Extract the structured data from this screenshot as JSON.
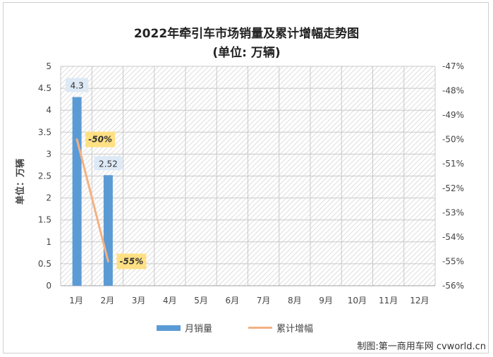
{
  "chart_data": {
    "type": "bar",
    "title": "2022年牵引车市场销量及累计增幅走势图",
    "subtitle": "(单位:  万辆)",
    "ylabel": "单位：万辆",
    "categories": [
      "1月",
      "2月",
      "3月",
      "4月",
      "5月",
      "6月",
      "7月",
      "8月",
      "9月",
      "10月",
      "11月",
      "12月"
    ],
    "series": [
      {
        "name": "月销量",
        "type": "bar",
        "axis": "left",
        "color": "#5b9bd5",
        "values": [
          4.3,
          2.52,
          null,
          null,
          null,
          null,
          null,
          null,
          null,
          null,
          null,
          null
        ],
        "data_labels": [
          "4.3",
          "2.52"
        ]
      },
      {
        "name": "累计增幅",
        "type": "line",
        "axis": "right",
        "color": "#f4b183",
        "values": [
          -50,
          -55,
          null,
          null,
          null,
          null,
          null,
          null,
          null,
          null,
          null,
          null
        ],
        "data_labels": [
          "-50%",
          "-55%"
        ]
      }
    ],
    "ylim_left": [
      0,
      5
    ],
    "yticks_left": [
      "0",
      "0.5",
      "1",
      "1.5",
      "2",
      "2.5",
      "3",
      "3.5",
      "4",
      "4.5",
      "5"
    ],
    "ylim_right": [
      -56,
      -47
    ],
    "yticks_right": [
      "-56%",
      "-55%",
      "-54%",
      "-53%",
      "-52%",
      "-51%",
      "-50%",
      "-49%",
      "-48%",
      "-47%"
    ],
    "grid": true,
    "legend_position": "bottom",
    "source": "制图:第一商用车网 cvworld.cn"
  }
}
